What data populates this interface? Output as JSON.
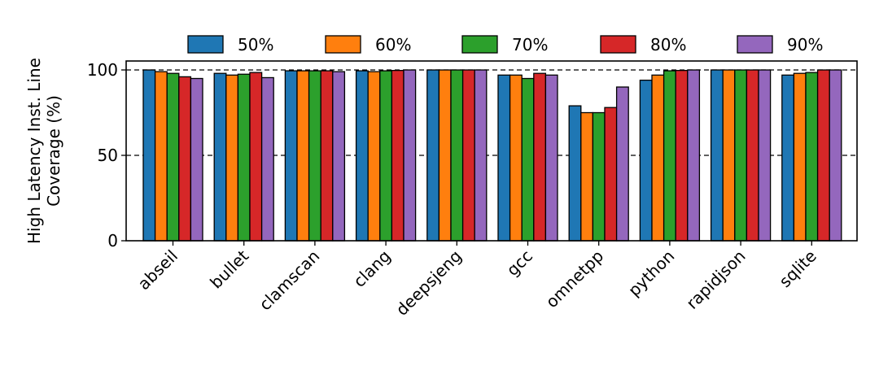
{
  "chart_data": {
    "type": "bar",
    "ylabel_lines": [
      "High Latency Inst. Line",
      "Coverage (%)"
    ],
    "xlabel": "",
    "ylim": [
      0,
      100
    ],
    "yticks": [
      0,
      50,
      100
    ],
    "grid": "horizontal dashed at 50 and 100",
    "legend_placement": "top-center",
    "categories": [
      "abseil",
      "bullet",
      "clamscan",
      "clang",
      "deepsjeng",
      "gcc",
      "omnetpp",
      "python",
      "rapidjson",
      "sqlite"
    ],
    "series": [
      {
        "name": "50%",
        "color": "#1f77b4",
        "values": [
          100,
          98,
          99.5,
          99.5,
          100,
          97,
          79,
          94,
          100,
          97
        ]
      },
      {
        "name": "60%",
        "color": "#ff7f0e",
        "values": [
          99,
          97,
          99.5,
          99,
          100,
          97,
          75,
          97,
          100,
          98
        ]
      },
      {
        "name": "70%",
        "color": "#2ca02c",
        "values": [
          98,
          97.5,
          99.5,
          99.5,
          100,
          95,
          75,
          99.5,
          100,
          98.5
        ]
      },
      {
        "name": "80%",
        "color": "#d62728",
        "values": [
          96,
          98.5,
          99.5,
          99.7,
          100,
          98,
          78,
          99.7,
          100,
          100
        ]
      },
      {
        "name": "90%",
        "color": "#9467bd",
        "values": [
          95,
          95.5,
          99,
          100,
          100,
          97,
          90,
          100,
          100,
          100
        ]
      }
    ]
  }
}
